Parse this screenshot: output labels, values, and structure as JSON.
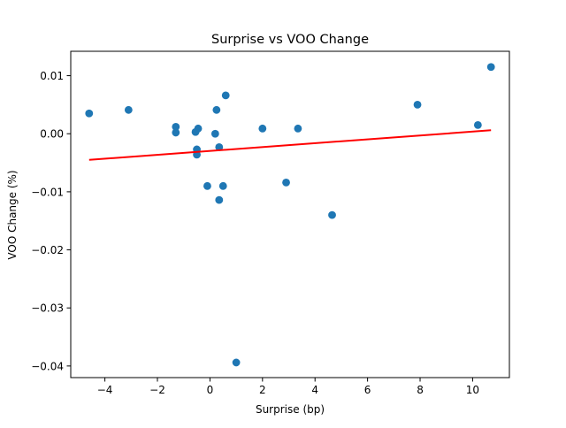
{
  "chart_data": {
    "type": "scatter",
    "title": "Surprise vs VOO Change",
    "xlabel": "Surprise (bp)",
    "ylabel": "VOO Change (%)",
    "xlim": [
      -5.3,
      11.4
    ],
    "ylim": [
      -0.042,
      0.0142
    ],
    "xticks": [
      -4,
      -2,
      0,
      2,
      4,
      6,
      8,
      10
    ],
    "xtick_labels": [
      "−4",
      "−2",
      "0",
      "2",
      "4",
      "6",
      "8",
      "10"
    ],
    "yticks": [
      0.01,
      0.0,
      -0.01,
      -0.02,
      -0.03,
      -0.04
    ],
    "ytick_labels": [
      "0.01",
      "0.00",
      "−0.01",
      "−0.02",
      "−0.03",
      "−0.04"
    ],
    "grid": false,
    "series": [
      {
        "color": "#1f77b4",
        "points": [
          [
            -4.6,
            0.0035
          ],
          [
            -3.1,
            0.0041
          ],
          [
            -1.3,
            0.0012
          ],
          [
            -1.3,
            0.0002
          ],
          [
            -0.55,
            0.0003
          ],
          [
            -0.45,
            0.0009
          ],
          [
            -0.5,
            -0.0027
          ],
          [
            -0.5,
            -0.0036
          ],
          [
            -0.1,
            -0.009
          ],
          [
            0.2,
            0.0
          ],
          [
            0.25,
            0.0041
          ],
          [
            0.35,
            -0.0023
          ],
          [
            0.35,
            -0.0114
          ],
          [
            0.5,
            -0.009
          ],
          [
            0.6,
            0.0066
          ],
          [
            1.0,
            -0.0394
          ],
          [
            2.0,
            0.0009
          ],
          [
            2.9,
            -0.0084
          ],
          [
            3.35,
            0.0009
          ],
          [
            4.65,
            -0.014
          ],
          [
            7.9,
            0.005
          ],
          [
            10.2,
            0.0015
          ],
          [
            10.7,
            0.0115
          ]
        ]
      }
    ],
    "trendline": {
      "color": "#ff0000",
      "x": [
        -4.6,
        10.7
      ],
      "y": [
        -0.0045,
        0.0006
      ]
    }
  }
}
